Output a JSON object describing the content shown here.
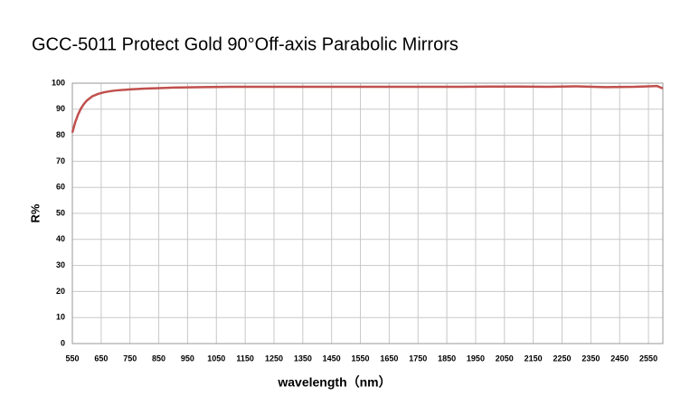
{
  "chart_data": {
    "type": "line",
    "title": "GCC-5011  Protect  Gold  90°Off-axis  Parabolic  Mirrors",
    "x_label": "wavelength（nm）",
    "y_label": "R%",
    "color": "#c0504d",
    "grid": true,
    "x": [
      550,
      560,
      570,
      580,
      590,
      600,
      620,
      640,
      660,
      680,
      700,
      750,
      800,
      850,
      900,
      1000,
      1100,
      1200,
      1300,
      1400,
      1500,
      1600,
      1700,
      1800,
      1900,
      2000,
      2100,
      2200,
      2300,
      2400,
      2500,
      2550,
      2580,
      2600
    ],
    "values": [
      81,
      85,
      88,
      90.3,
      92,
      93.3,
      95,
      95.9,
      96.5,
      96.9,
      97.2,
      97.6,
      97.9,
      98.1,
      98.3,
      98.5,
      98.6,
      98.6,
      98.6,
      98.6,
      98.6,
      98.6,
      98.6,
      98.6,
      98.6,
      98.7,
      98.7,
      98.6,
      98.8,
      98.5,
      98.6,
      98.8,
      98.9,
      98
    ],
    "xlim": [
      550,
      2600
    ],
    "ylim": [
      0,
      100
    ],
    "xticks": [
      550,
      650,
      750,
      850,
      950,
      1050,
      1150,
      1250,
      1350,
      1450,
      1550,
      1650,
      1750,
      1850,
      1950,
      2050,
      2150,
      2250,
      2350,
      2450,
      2550
    ],
    "yticks": [
      0,
      10,
      20,
      30,
      40,
      50,
      60,
      70,
      80,
      90,
      100
    ]
  }
}
